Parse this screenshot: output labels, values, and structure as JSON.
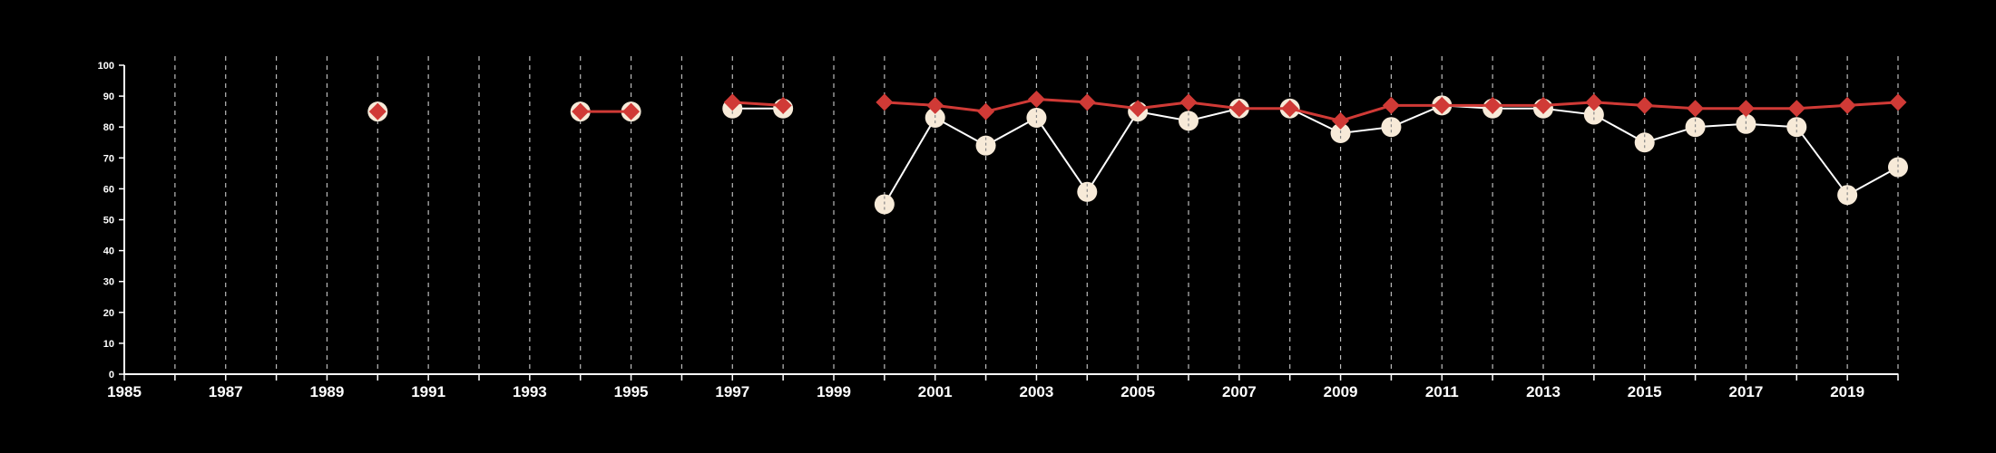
{
  "chart_data": {
    "type": "line",
    "title": "",
    "xlabel": "",
    "ylabel": "",
    "xlim": [
      1985,
      2020
    ],
    "ylim": [
      0,
      100
    ],
    "x_ticks": [
      1985,
      1987,
      1989,
      1991,
      1993,
      1995,
      1997,
      1999,
      2001,
      2003,
      2005,
      2007,
      2009,
      2011,
      2013,
      2015,
      2017,
      2019
    ],
    "y_ticks": [
      0,
      10,
      20,
      30,
      40,
      50,
      60,
      70,
      80,
      90,
      100
    ],
    "vertical_gridlines": "dashed, every year",
    "legend": "none",
    "colors": {
      "background": "#000000",
      "axis": "#ffffff",
      "grid": "#bbbbbb",
      "series_1_marker": "#f7ead8",
      "series_1_line": "#ffffff",
      "series_2": "#d03a36"
    },
    "series": [
      {
        "marker": "circle",
        "color": "#f7ead8",
        "points": [
          [
            1990,
            85
          ],
          [
            1994,
            85
          ],
          [
            1995,
            85
          ],
          [
            1997,
            86
          ],
          [
            1998,
            86
          ],
          [
            2000,
            55
          ],
          [
            2001,
            83
          ],
          [
            2002,
            74
          ],
          [
            2003,
            83
          ],
          [
            2004,
            59
          ],
          [
            2005,
            85
          ],
          [
            2006,
            82
          ],
          [
            2007,
            86
          ],
          [
            2008,
            86
          ],
          [
            2009,
            78
          ],
          [
            2010,
            80
          ],
          [
            2011,
            87
          ],
          [
            2012,
            86
          ],
          [
            2013,
            86
          ],
          [
            2014,
            84
          ],
          [
            2015,
            75
          ],
          [
            2016,
            80
          ],
          [
            2017,
            81
          ],
          [
            2018,
            80
          ],
          [
            2019,
            58
          ],
          [
            2020,
            67
          ]
        ]
      },
      {
        "marker": "diamond",
        "color": "#d03a36",
        "points": [
          [
            1990,
            85
          ],
          [
            1994,
            85
          ],
          [
            1995,
            85
          ],
          [
            1997,
            88
          ],
          [
            1998,
            87
          ],
          [
            2000,
            88
          ],
          [
            2001,
            87
          ],
          [
            2002,
            85
          ],
          [
            2003,
            89
          ],
          [
            2004,
            88
          ],
          [
            2005,
            86
          ],
          [
            2006,
            88
          ],
          [
            2007,
            86
          ],
          [
            2008,
            86
          ],
          [
            2009,
            82
          ],
          [
            2010,
            87
          ],
          [
            2011,
            87
          ],
          [
            2012,
            87
          ],
          [
            2013,
            87
          ],
          [
            2014,
            88
          ],
          [
            2015,
            87
          ],
          [
            2016,
            86
          ],
          [
            2017,
            86
          ],
          [
            2018,
            86
          ],
          [
            2019,
            87
          ],
          [
            2020,
            88
          ]
        ]
      }
    ]
  }
}
